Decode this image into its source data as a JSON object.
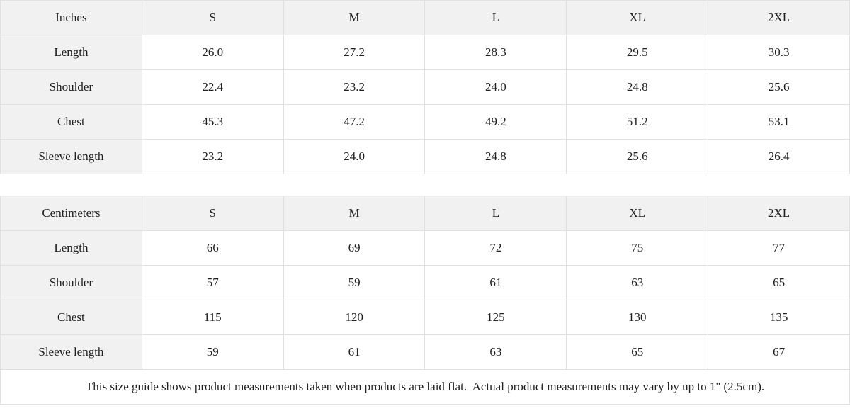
{
  "chart_data": [
    {
      "type": "table",
      "title": "Inches size guide",
      "columns": [
        "Inches",
        "S",
        "M",
        "L",
        "XL",
        "2XL"
      ],
      "rows": [
        [
          "Length",
          "26.0",
          "27.2",
          "28.3",
          "29.5",
          "30.3"
        ],
        [
          "Shoulder",
          "22.4",
          "23.2",
          "24.0",
          "24.8",
          "25.6"
        ],
        [
          "Chest",
          "45.3",
          "47.2",
          "49.2",
          "51.2",
          "53.1"
        ],
        [
          "Sleeve length",
          "23.2",
          "24.0",
          "24.8",
          "25.6",
          "26.4"
        ]
      ]
    },
    {
      "type": "table",
      "title": "Centimeters size guide",
      "columns": [
        "Centimeters",
        "S",
        "M",
        "L",
        "XL",
        "2XL"
      ],
      "rows": [
        [
          "Length",
          "66",
          "69",
          "72",
          "75",
          "77"
        ],
        [
          "Shoulder",
          "57",
          "59",
          "61",
          "63",
          "65"
        ],
        [
          "Chest",
          "115",
          "120",
          "125",
          "130",
          "135"
        ],
        [
          "Sleeve length",
          "59",
          "61",
          "63",
          "65",
          "67"
        ]
      ]
    }
  ],
  "footer": {
    "note": "This size guide shows product measurements taken when products are laid flat.  Actual product measurements may vary by up to 1\" (2.5cm)."
  },
  "colors": {
    "header_bg": "#f1f1f1",
    "border": "#e0e0e0",
    "text": "#202020",
    "cell_bg": "#ffffff"
  }
}
